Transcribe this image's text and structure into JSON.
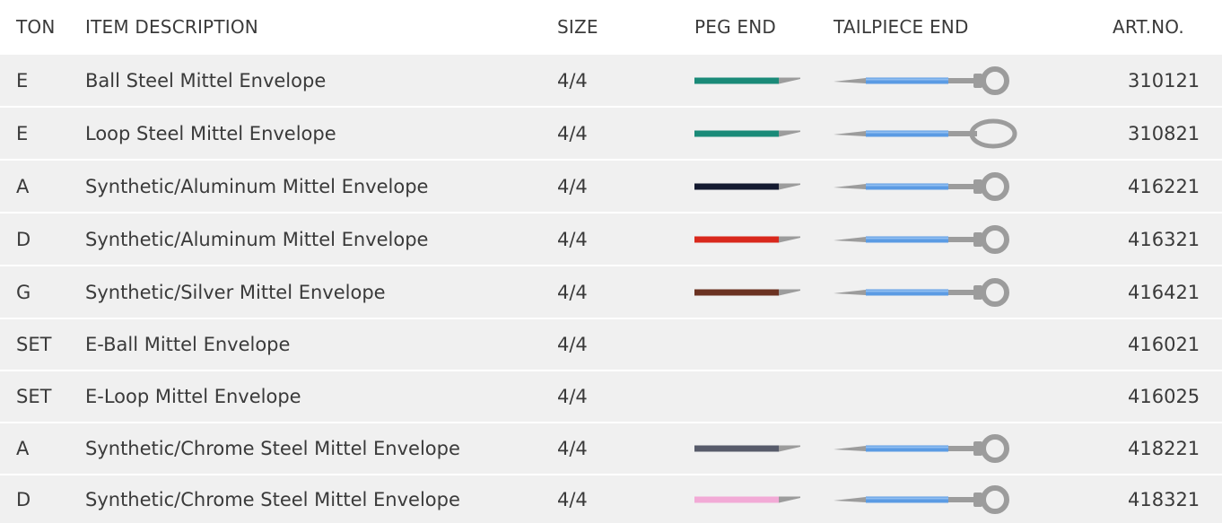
{
  "header": {
    "ton": "TON",
    "description": "ITEM DESCRIPTION",
    "size": "SIZE",
    "peg_end": "PEG END",
    "tailpiece_end": "TAILPIECE END",
    "art_no": "ART.NO."
  },
  "colors": {
    "row_bg": "#f0f0f0",
    "tail_blue": "#5b9be3",
    "metal_gray": "#9c9c9c"
  },
  "rows": [
    {
      "ton": "E",
      "description": "Ball Steel Mittel Envelope",
      "size": "4/4",
      "peg_color": "#1a8a78",
      "tail_type": "ball-icon",
      "art_no": "310121"
    },
    {
      "ton": "E",
      "description": "Loop Steel Mittel Envelope",
      "size": "4/4",
      "peg_color": "#1a8a78",
      "tail_type": "loop-icon",
      "art_no": "310821"
    },
    {
      "ton": "A",
      "description": "Synthetic/Aluminum Mittel Envelope",
      "size": "4/4",
      "peg_color": "#141a30",
      "tail_type": "ball-icon",
      "art_no": "416221"
    },
    {
      "ton": "D",
      "description": "Synthetic/Aluminum Mittel Envelope",
      "size": "4/4",
      "peg_color": "#d9281c",
      "tail_type": "ball-icon",
      "art_no": "416321"
    },
    {
      "ton": "G",
      "description": "Synthetic/Silver Mittel Envelope",
      "size": "4/4",
      "peg_color": "#6b3222",
      "tail_type": "ball-icon",
      "art_no": "416421"
    },
    {
      "ton": "SET",
      "description": "E-Ball Mittel Envelope",
      "size": "4/4",
      "peg_color": null,
      "tail_type": null,
      "art_no": "416021"
    },
    {
      "ton": "SET",
      "description": "E-Loop Mittel Envelope",
      "size": "4/4",
      "peg_color": null,
      "tail_type": null,
      "art_no": "416025"
    },
    {
      "ton": "A",
      "description": "Synthetic/Chrome Steel Mittel Envelope",
      "size": "4/4",
      "peg_color": "#575b6a",
      "tail_type": "ball-icon",
      "art_no": "418221"
    },
    {
      "ton": "D",
      "description": "Synthetic/Chrome Steel Mittel Envelope",
      "size": "4/4",
      "peg_color": "#f2aad6",
      "tail_type": "ball-icon",
      "art_no": "418321"
    }
  ]
}
